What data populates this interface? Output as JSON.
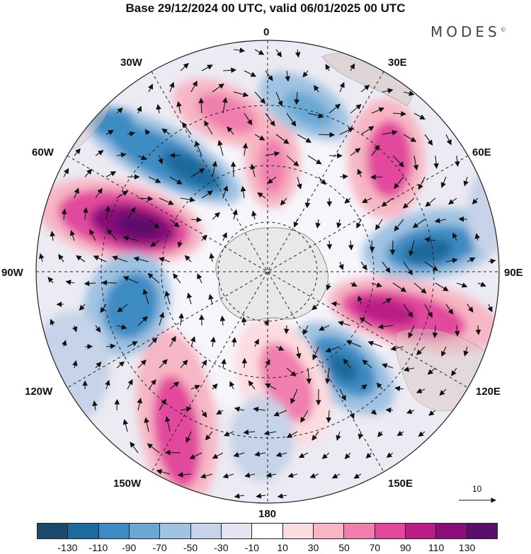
{
  "title": "Base 29/12/2024 00 UTC, valid 06/01/2025 00 UTC",
  "brand": "MODES",
  "brand_mark": "©",
  "longitude_labels": {
    "lon_0": "0",
    "lon_30e": "30E",
    "lon_60e": "60E",
    "lon_90e": "90E",
    "lon_120e": "120E",
    "lon_150e": "150E",
    "lon_180": "180",
    "lon_150w": "150W",
    "lon_120w": "120W",
    "lon_90w": "90W",
    "lon_60w": "60W",
    "lon_30w": "30W"
  },
  "reference_vector_label": "10",
  "colorbar": {
    "tick_labels": [
      "-130",
      "-110",
      "-90",
      "-70",
      "-50",
      "-30",
      "-10",
      "10",
      "30",
      "50",
      "70",
      "90",
      "110",
      "130"
    ],
    "colors": [
      "#1d4a6c",
      "#1f6a9c",
      "#3d8cc4",
      "#6aa8d4",
      "#9fc3e2",
      "#c6d3e8",
      "#e4e4f0",
      "#ffffff",
      "#fbdcdf",
      "#f7b6c4",
      "#f07fae",
      "#e2489c",
      "#bb1c86",
      "#8a0f78",
      "#5a0f6a"
    ]
  },
  "map_data": {
    "projection": "south-polar-stereographic",
    "field": "anomaly",
    "anomaly_centres": [
      {
        "sign": "positive",
        "magnitude": 130,
        "near": "90W"
      },
      {
        "sign": "negative",
        "magnitude": 90,
        "near": "45W"
      },
      {
        "sign": "positive",
        "magnitude": 70,
        "near": "15W"
      },
      {
        "sign": "negative",
        "magnitude": 50,
        "near": "15E"
      },
      {
        "sign": "positive",
        "magnitude": 70,
        "near": "40E"
      },
      {
        "sign": "negative",
        "magnitude": 110,
        "near": "75E"
      },
      {
        "sign": "positive",
        "magnitude": 110,
        "near": "100E"
      },
      {
        "sign": "negative",
        "magnitude": 110,
        "near": "145E"
      },
      {
        "sign": "positive",
        "magnitude": 50,
        "near": "175E"
      },
      {
        "sign": "positive",
        "magnitude": 70,
        "near": "155W"
      },
      {
        "sign": "negative",
        "magnitude": 90,
        "near": "115W"
      }
    ]
  }
}
